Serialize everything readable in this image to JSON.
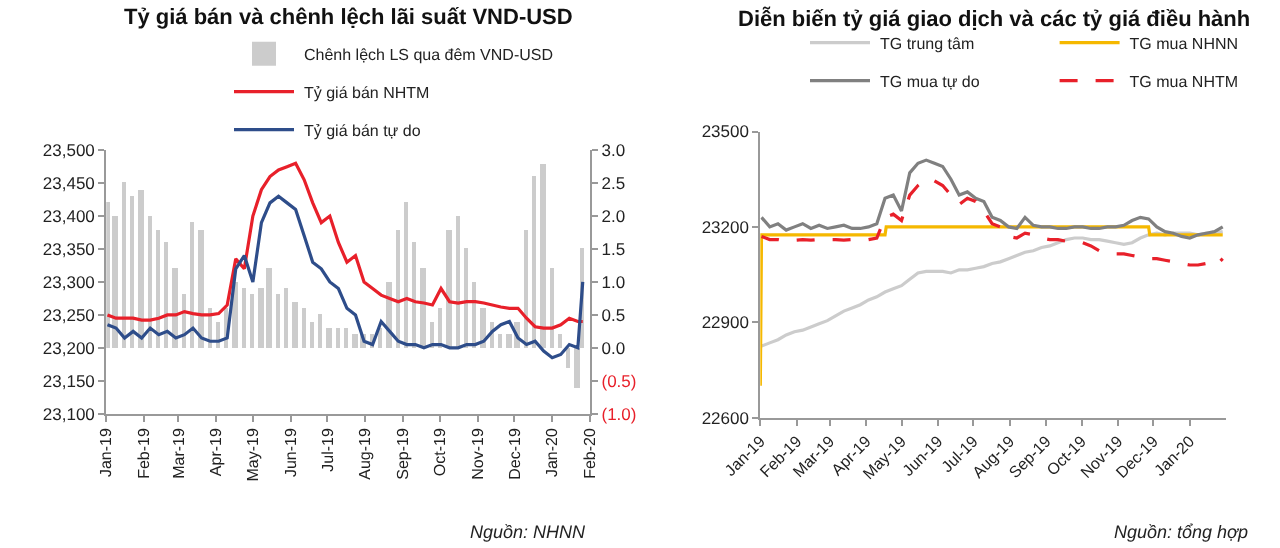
{
  "chart_data": [
    {
      "type": "line",
      "title": "Tỷ giá bán và chênh lệch lãi suất VND-USD",
      "x": [
        "2019-01-02",
        "2019-01-09",
        "2019-01-16",
        "2019-01-23",
        "2019-01-30",
        "2019-02-06",
        "2019-02-13",
        "2019-02-20",
        "2019-02-27",
        "2019-03-06",
        "2019-03-13",
        "2019-03-20",
        "2019-03-27",
        "2019-04-03",
        "2019-04-10",
        "2019-04-17",
        "2019-04-24",
        "2019-05-01",
        "2019-05-08",
        "2019-05-15",
        "2019-05-22",
        "2019-05-29",
        "2019-06-05",
        "2019-06-12",
        "2019-06-19",
        "2019-06-26",
        "2019-07-03",
        "2019-07-10",
        "2019-07-17",
        "2019-07-24",
        "2019-07-31",
        "2019-08-07",
        "2019-08-14",
        "2019-08-21",
        "2019-08-28",
        "2019-09-04",
        "2019-09-11",
        "2019-09-18",
        "2019-09-25",
        "2019-10-02",
        "2019-10-09",
        "2019-10-16",
        "2019-10-23",
        "2019-10-30",
        "2019-11-06",
        "2019-11-13",
        "2019-11-20",
        "2019-11-27",
        "2019-12-04",
        "2019-12-11",
        "2019-12-18",
        "2019-12-25",
        "2020-01-01",
        "2020-01-08",
        "2020-01-15",
        "2020-01-22",
        "2020-01-26"
      ],
      "series": [
        {
          "name": "Chênh lệch LS qua đêm VND-USD",
          "type": "bar",
          "axis": "y2",
          "color": "#cccccc",
          "values": [
            2.2,
            2.0,
            2.5,
            2.3,
            2.4,
            2.0,
            1.8,
            1.6,
            1.2,
            0.8,
            1.9,
            1.8,
            0.6,
            0.4,
            0.6,
            1.0,
            0.9,
            0.8,
            0.9,
            1.2,
            0.8,
            0.9,
            0.7,
            0.6,
            0.4,
            0.5,
            0.3,
            0.3,
            0.3,
            0.2,
            0.2,
            0.2,
            0.3,
            1.0,
            1.8,
            2.2,
            1.6,
            1.2,
            0.4,
            0.6,
            1.8,
            2.0,
            1.5,
            1.0,
            0.6,
            0.4,
            0.2,
            0.2,
            0.4,
            1.8,
            2.6,
            2.8,
            1.2,
            0.2,
            -0.3,
            -0.6,
            1.5
          ]
        },
        {
          "name": "Tỷ giá bán NHTM",
          "color": "#e8202a",
          "values": [
            23250,
            23245,
            23245,
            23245,
            23242,
            23242,
            23245,
            23250,
            23250,
            23255,
            23252,
            23250,
            23250,
            23252,
            23265,
            23335,
            23320,
            23400,
            23440,
            23460,
            23470,
            23475,
            23480,
            23455,
            23420,
            23390,
            23400,
            23360,
            23330,
            23340,
            23300,
            23290,
            23280,
            23275,
            23270,
            23275,
            23270,
            23268,
            23265,
            23290,
            23270,
            23268,
            23270,
            23270,
            23268,
            23265,
            23262,
            23260,
            23260,
            23245,
            23232,
            23230,
            23230,
            23235,
            23245,
            23240,
            23240
          ]
        },
        {
          "name": "Tỷ giá bán tự do",
          "color": "#2e4d8a",
          "values": [
            23235,
            23230,
            23215,
            23225,
            23215,
            23230,
            23220,
            23225,
            23215,
            23220,
            23230,
            23215,
            23210,
            23210,
            23215,
            23320,
            23340,
            23300,
            23390,
            23420,
            23430,
            23420,
            23410,
            23370,
            23330,
            23320,
            23300,
            23290,
            23260,
            23250,
            23210,
            23205,
            23240,
            23225,
            23210,
            23205,
            23205,
            23200,
            23205,
            23205,
            23200,
            23200,
            23205,
            23205,
            23210,
            23225,
            23235,
            23240,
            23215,
            23205,
            23210,
            23195,
            23185,
            23190,
            23205,
            23200,
            23300
          ]
        }
      ],
      "xlim": [
        "2019-01-01",
        "2020-02-01"
      ],
      "xticks": [
        {
          "value": "2019-01-01",
          "label": "Jan-19"
        },
        {
          "value": "2019-02-01",
          "label": "Feb-19"
        },
        {
          "value": "2019-03-01",
          "label": "Mar-19"
        },
        {
          "value": "2019-04-01",
          "label": "Apr-19"
        },
        {
          "value": "2019-05-01",
          "label": "May-19"
        },
        {
          "value": "2019-06-01",
          "label": "Jun-19"
        },
        {
          "value": "2019-07-01",
          "label": "Jul-19"
        },
        {
          "value": "2019-08-01",
          "label": "Aug-19"
        },
        {
          "value": "2019-09-01",
          "label": "Sep-19"
        },
        {
          "value": "2019-10-01",
          "label": "Oct-19"
        },
        {
          "value": "2019-11-01",
          "label": "Nov-19"
        },
        {
          "value": "2019-12-01",
          "label": "Dec-19"
        },
        {
          "value": "2020-01-01",
          "label": "Jan-20"
        },
        {
          "value": "2020-02-01",
          "label": "Feb-20"
        }
      ],
      "ylim": [
        23100,
        23500
      ],
      "yticks": [
        {
          "value": 23100,
          "label": "23,100"
        },
        {
          "value": 23150,
          "label": "23,150"
        },
        {
          "value": 23200,
          "label": "23,200"
        },
        {
          "value": 23250,
          "label": "23,250"
        },
        {
          "value": 23300,
          "label": "23,300"
        },
        {
          "value": 23350,
          "label": "23,350"
        },
        {
          "value": 23400,
          "label": "23,400"
        },
        {
          "value": 23450,
          "label": "23,450"
        },
        {
          "value": 23500,
          "label": "23,500"
        }
      ],
      "y2lim": [
        -1.0,
        3.0
      ],
      "y2ticks": [
        {
          "value": -1.0,
          "label": "(1.0)"
        },
        {
          "value": -0.5,
          "label": "(0.5)"
        },
        {
          "value": 0,
          "label": "0.0"
        },
        {
          "value": 0.5,
          "label": "0.5"
        },
        {
          "value": 1.0,
          "label": "1.0"
        },
        {
          "value": 1.5,
          "label": "1.5"
        },
        {
          "value": 2.0,
          "label": "2.0"
        },
        {
          "value": 2.5,
          "label": "2.5"
        },
        {
          "value": 3.0,
          "label": "3.0"
        }
      ],
      "legend": "top",
      "annotations": [
        "Nguồn: NHNN"
      ]
    },
    {
      "type": "line",
      "title": "Diễn biến tỷ giá giao dịch và các tỷ giá điều hành",
      "x": [
        "2019-01-02",
        "2019-01-09",
        "2019-01-16",
        "2019-01-23",
        "2019-01-30",
        "2019-02-06",
        "2019-02-13",
        "2019-02-20",
        "2019-02-27",
        "2019-03-06",
        "2019-03-13",
        "2019-03-20",
        "2019-03-27",
        "2019-04-03",
        "2019-04-10",
        "2019-04-17",
        "2019-04-24",
        "2019-05-01",
        "2019-05-08",
        "2019-05-15",
        "2019-05-22",
        "2019-05-29",
        "2019-06-05",
        "2019-06-12",
        "2019-06-19",
        "2019-06-26",
        "2019-07-03",
        "2019-07-10",
        "2019-07-17",
        "2019-07-24",
        "2019-07-31",
        "2019-08-07",
        "2019-08-14",
        "2019-08-21",
        "2019-08-28",
        "2019-09-04",
        "2019-09-11",
        "2019-09-18",
        "2019-09-25",
        "2019-10-02",
        "2019-10-09",
        "2019-10-16",
        "2019-10-23",
        "2019-10-30",
        "2019-11-06",
        "2019-11-13",
        "2019-11-20",
        "2019-11-27",
        "2019-12-04",
        "2019-12-11",
        "2019-12-18",
        "2019-12-25",
        "2020-01-01",
        "2020-01-08",
        "2020-01-15",
        "2020-01-22",
        "2020-01-29"
      ],
      "series": [
        {
          "name": "TG trung tâm",
          "color": "#cccccc",
          "values": [
            22825,
            22835,
            22845,
            22860,
            22870,
            22875,
            22885,
            22895,
            22905,
            22920,
            22935,
            22945,
            22955,
            22970,
            22980,
            22995,
            23005,
            23015,
            23035,
            23055,
            23060,
            23060,
            23060,
            23055,
            23065,
            23065,
            23070,
            23075,
            23085,
            23090,
            23100,
            23110,
            23120,
            23125,
            23135,
            23140,
            23150,
            23160,
            23165,
            23165,
            23160,
            23160,
            23155,
            23150,
            23145,
            23150,
            23165,
            23175,
            23180,
            23175,
            23180,
            23180,
            23180,
            23175,
            23180,
            23180,
            23185
          ]
        },
        {
          "name": "TG mua NHNN",
          "color": "#f5b800",
          "x": [
            "2019-01-01",
            "2019-01-02",
            "2019-04-17",
            "2019-04-18",
            "2019-11-27",
            "2019-11-28",
            "2020-01-29"
          ],
          "values": [
            22700,
            23175,
            23175,
            23200,
            23200,
            23175,
            23175
          ]
        },
        {
          "name": "TG mua tự do",
          "color": "#808080",
          "values": [
            23230,
            23200,
            23210,
            23190,
            23200,
            23210,
            23195,
            23205,
            23195,
            23200,
            23205,
            23195,
            23195,
            23200,
            23210,
            23290,
            23300,
            23250,
            23370,
            23400,
            23410,
            23400,
            23390,
            23350,
            23300,
            23310,
            23290,
            23280,
            23230,
            23220,
            23200,
            23195,
            23230,
            23205,
            23200,
            23200,
            23195,
            23195,
            23200,
            23200,
            23195,
            23195,
            23200,
            23200,
            23205,
            23220,
            23230,
            23225,
            23200,
            23185,
            23180,
            23170,
            23165,
            23175,
            23180,
            23185,
            23200
          ]
        },
        {
          "name": "TG mua NHTM",
          "color": "#e8202a",
          "line_style": "dashed",
          "values": [
            23170,
            23160,
            23160,
            23155,
            23158,
            23160,
            23158,
            23160,
            23160,
            23160,
            23158,
            23160,
            23160,
            23160,
            23165,
            23230,
            23240,
            23220,
            23300,
            23330,
            23350,
            23345,
            23330,
            23300,
            23270,
            23290,
            23280,
            23250,
            23210,
            23200,
            23170,
            23165,
            23180,
            23175,
            23165,
            23160,
            23160,
            23155,
            23150,
            23150,
            23140,
            23125,
            23120,
            23115,
            23115,
            23110,
            23105,
            23100,
            23100,
            23095,
            23090,
            23085,
            23080,
            23080,
            23085,
            23075,
            23100
          ]
        }
      ],
      "xlim": [
        "2019-01-01",
        "2020-02-01"
      ],
      "xticks": [
        {
          "value": "2019-01-01",
          "label": "Jan-19"
        },
        {
          "value": "2019-02-01",
          "label": "Feb-19"
        },
        {
          "value": "2019-03-01",
          "label": "Mar-19"
        },
        {
          "value": "2019-04-01",
          "label": "Apr-19"
        },
        {
          "value": "2019-05-01",
          "label": "May-19"
        },
        {
          "value": "2019-06-01",
          "label": "Jun-19"
        },
        {
          "value": "2019-07-01",
          "label": "Jul-19"
        },
        {
          "value": "2019-08-01",
          "label": "Aug-19"
        },
        {
          "value": "2019-09-01",
          "label": "Sep-19"
        },
        {
          "value": "2019-10-01",
          "label": "Oct-19"
        },
        {
          "value": "2019-11-01",
          "label": "Nov-19"
        },
        {
          "value": "2019-12-01",
          "label": "Dec-19"
        },
        {
          "value": "2020-01-01",
          "label": "Jan-20"
        }
      ],
      "ylim": [
        22600,
        23500
      ],
      "yticks": [
        22600,
        22900,
        23200,
        23500
      ],
      "legend": "top",
      "annotations": [
        "Nguồn: tổng hợp"
      ]
    }
  ]
}
